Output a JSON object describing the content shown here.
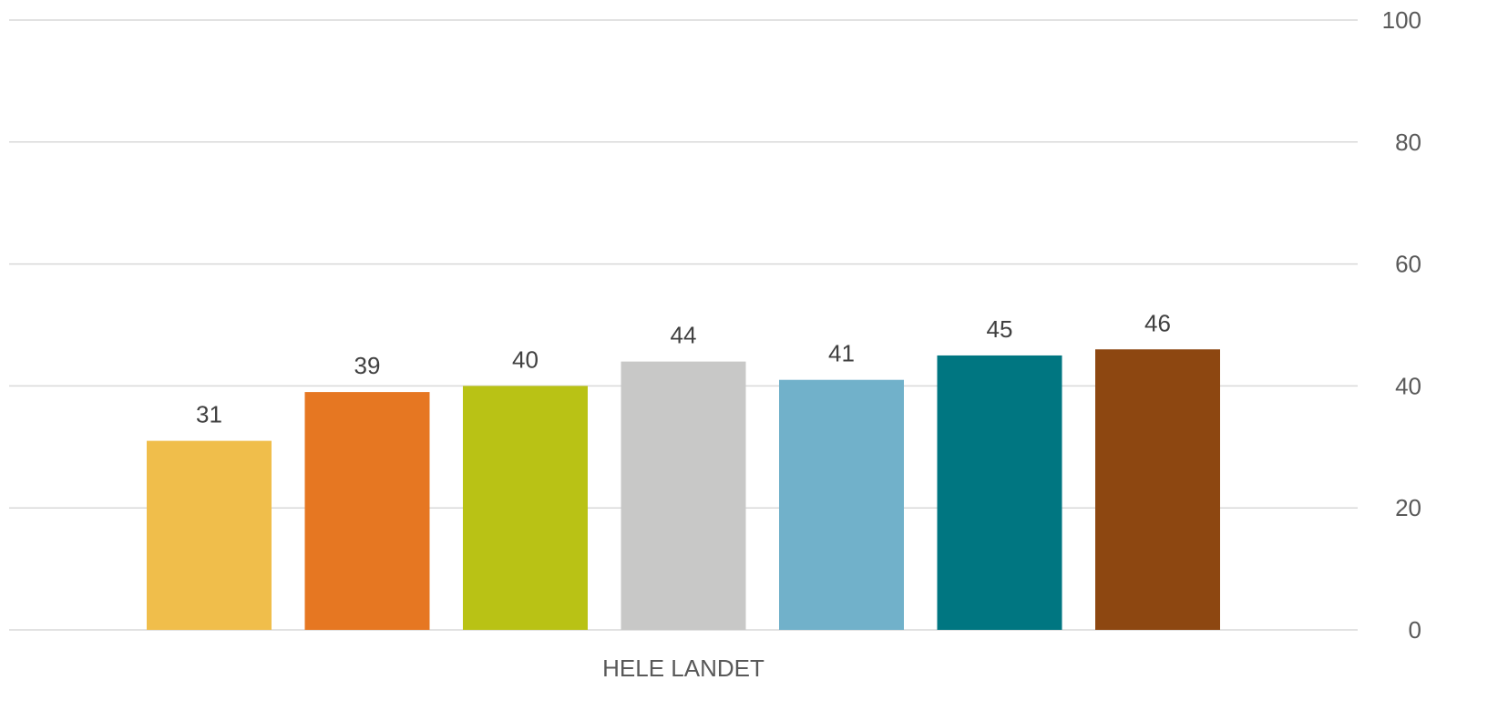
{
  "chart_data": {
    "type": "bar",
    "categories": [
      "HELE LANDET"
    ],
    "series": [
      {
        "values": [
          31
        ],
        "color": "#F0BE4B"
      },
      {
        "values": [
          39
        ],
        "color": "#E67722"
      },
      {
        "values": [
          40
        ],
        "color": "#B9C215"
      },
      {
        "values": [
          44
        ],
        "color": "#C8C8C7"
      },
      {
        "values": [
          41
        ],
        "color": "#71B1CA"
      },
      {
        "values": [
          45
        ],
        "color": "#007681"
      },
      {
        "values": [
          46
        ],
        "color": "#8D4711"
      }
    ],
    "data_labels": [
      "31",
      "39",
      "40",
      "44",
      "41",
      "45",
      "46"
    ],
    "yticks": [
      0,
      20,
      40,
      60,
      80,
      100
    ],
    "ylim": [
      0,
      100
    ],
    "y_axis_side": "right",
    "grid": true,
    "legend": "none"
  }
}
